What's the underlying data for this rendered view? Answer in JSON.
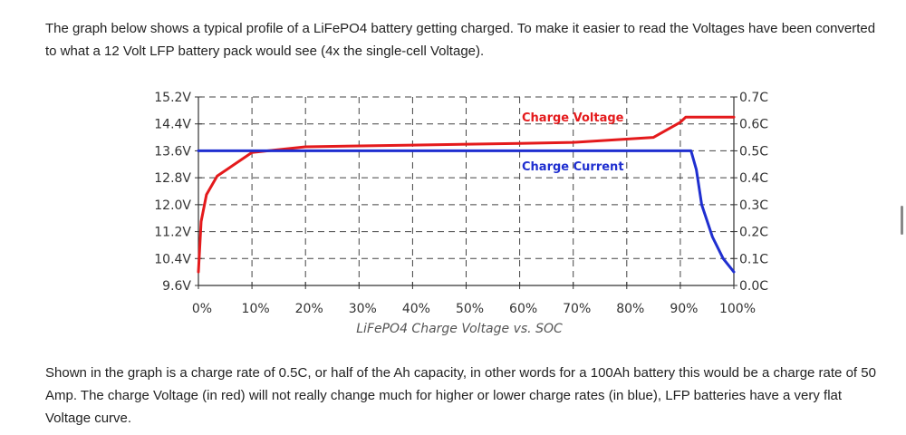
{
  "intro_text": "The graph below shows a typical profile of a LiFePO4 battery getting charged. To make it easier to read the Voltages have been converted to what a 12 Volt LFP battery pack would see (4x the single-cell Voltage).",
  "outro_text": "Shown in the graph is a charge rate of 0.5C, or half of the Ah capacity, in other words for a 100Ah battery this would be a charge rate of 50 Amp. The charge Voltage (in red) will not really change much for higher or lower charge rates (in blue), LFP batteries have a very flat Voltage curve.",
  "chart_data": {
    "type": "line",
    "title": "LiFePO4 Charge Voltage vs. SOC",
    "xlabel": "SOC",
    "x_ticks": [
      "0%",
      "10%",
      "20%",
      "30%",
      "40%",
      "50%",
      "60%",
      "70%",
      "80%",
      "90%",
      "100%"
    ],
    "x_tick_values": [
      0,
      10,
      20,
      30,
      40,
      50,
      60,
      70,
      80,
      90,
      100
    ],
    "xlim": [
      0,
      100
    ],
    "y_left_ticks": [
      "15.2V",
      "14.4V",
      "13.6V",
      "12.8V",
      "12.0V",
      "11.2V",
      "10.4V",
      "9.6V"
    ],
    "y_left_values": [
      15.2,
      14.4,
      13.6,
      12.8,
      12.0,
      11.2,
      10.4,
      9.6
    ],
    "y_left_lim": [
      9.6,
      15.2
    ],
    "y_right_ticks": [
      "0.7C",
      "0.6C",
      "0.5C",
      "0.4C",
      "0.3C",
      "0.2C",
      "0.1C",
      "0.0C"
    ],
    "y_right_values": [
      0.7,
      0.6,
      0.5,
      0.4,
      0.3,
      0.2,
      0.1,
      0.0
    ],
    "y_right_lim": [
      0.0,
      0.7
    ],
    "grid": true,
    "series": [
      {
        "name": "Charge Voltage",
        "label": "Charge Voltage",
        "axis": "left",
        "color": "#e41a1c",
        "x": [
          0,
          0.5,
          1.5,
          3.5,
          10,
          20,
          40,
          60,
          70,
          85,
          90,
          91,
          100
        ],
        "y": [
          10.0,
          11.5,
          12.3,
          12.85,
          13.55,
          13.72,
          13.77,
          13.82,
          13.85,
          14.0,
          14.45,
          14.6,
          14.6
        ]
      },
      {
        "name": "Charge Current",
        "label": "Charge Current",
        "axis": "right",
        "color": "#1f2fd0",
        "x": [
          0,
          92,
          93,
          94,
          96,
          98,
          100
        ],
        "y": [
          0.5,
          0.5,
          0.43,
          0.3,
          0.18,
          0.1,
          0.05
        ]
      }
    ]
  }
}
